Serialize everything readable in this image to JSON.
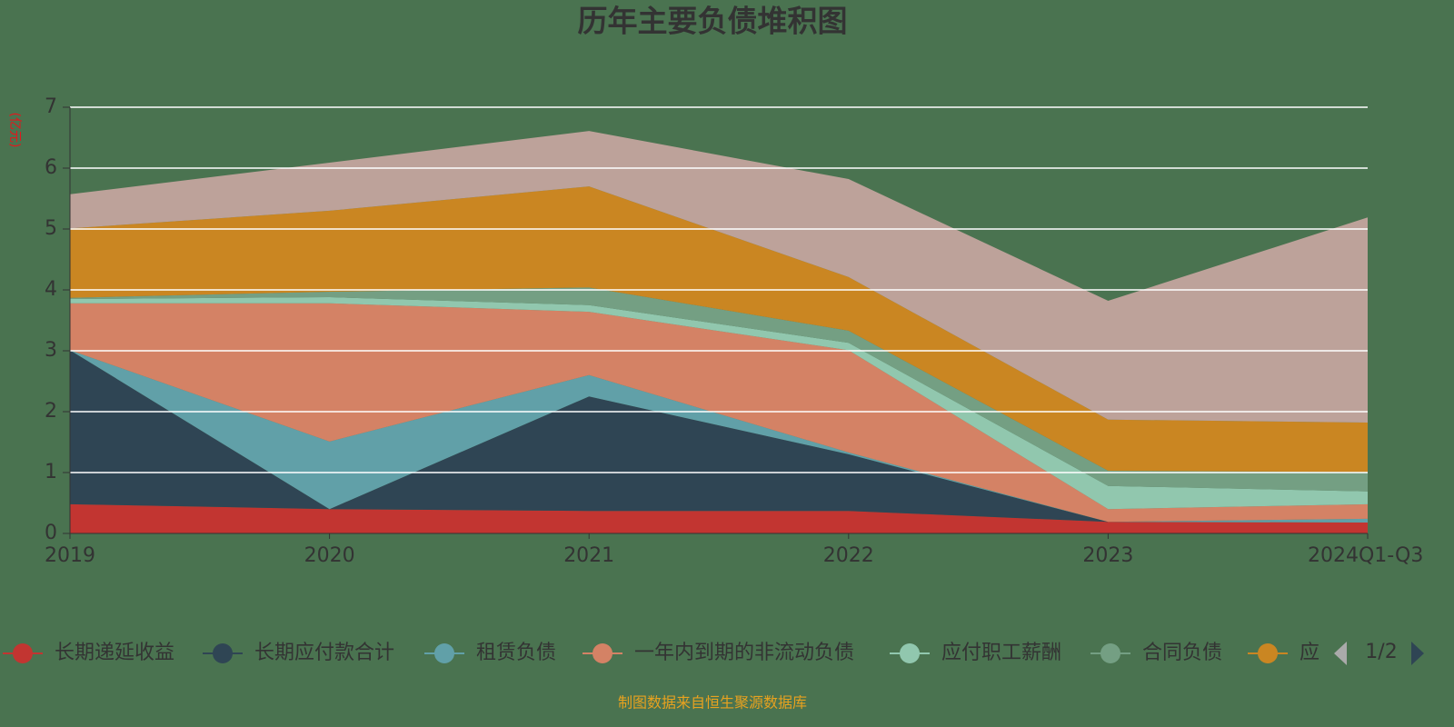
{
  "chart_data": {
    "type": "stacked_area",
    "title": "历年主要负债堆积图",
    "y_label": "(亿元)",
    "categories": [
      "2019",
      "2020",
      "2021",
      "2022",
      "2023",
      "2024Q1-Q3"
    ],
    "ylim": [
      0,
      7
    ],
    "yticks": [
      0,
      1,
      2,
      3,
      4,
      5,
      6,
      7
    ],
    "grid": true,
    "series": [
      {
        "name": "长期递延收益",
        "color": "#c23531",
        "values": [
          0.48,
          0.4,
          0.37,
          0.37,
          0.19,
          0.18
        ]
      },
      {
        "name": "长期应付款合计",
        "color": "#2f4554",
        "values": [
          2.53,
          0.0,
          1.88,
          0.93,
          0.0,
          0.0
        ]
      },
      {
        "name": "租赁负债",
        "color": "#61a0a8",
        "values": [
          0.0,
          1.11,
          0.35,
          0.03,
          0.0,
          0.06
        ]
      },
      {
        "name": "一年内到期的非流动负债",
        "color": "#d48265",
        "values": [
          0.77,
          2.27,
          1.04,
          1.68,
          0.21,
          0.24
        ]
      },
      {
        "name": "应付职工薪酬",
        "color": "#91c7ae",
        "values": [
          0.07,
          0.1,
          0.11,
          0.12,
          0.38,
          0.21
        ]
      },
      {
        "name": "合同负债",
        "color": "#749f83",
        "values": [
          0.02,
          0.09,
          0.29,
          0.2,
          0.25,
          0.32
        ]
      },
      {
        "name": "应",
        "color": "#ca8622",
        "values": [
          1.14,
          1.33,
          1.66,
          0.88,
          0.84,
          0.81
        ]
      },
      {
        "color": "#bda29a",
        "values": [
          0.56,
          0.79,
          0.91,
          1.61,
          1.95,
          3.37
        ]
      }
    ],
    "legend_page": "1/2",
    "source": "制图数据来自恒生聚源数据库"
  }
}
